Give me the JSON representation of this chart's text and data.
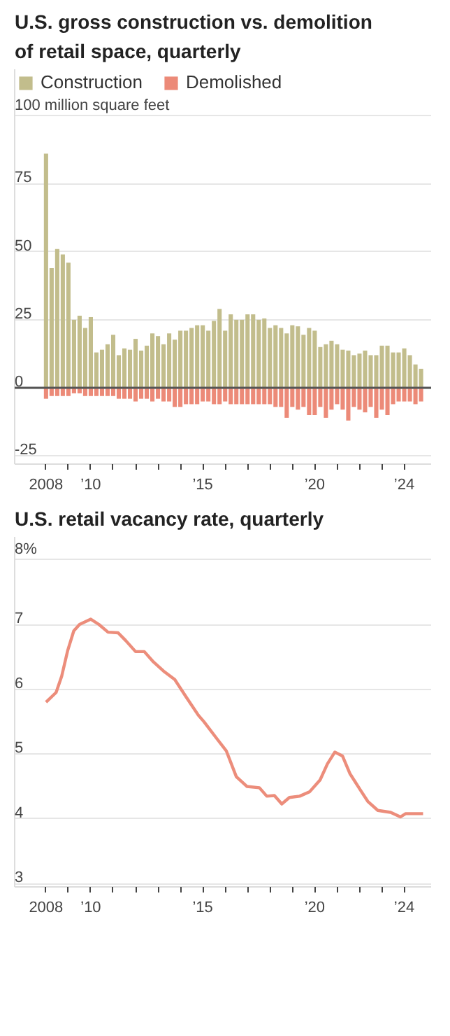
{
  "chart_data": [
    {
      "type": "bar",
      "title": "U.S. gross construction vs. demolition of retail space, quarterly",
      "x": [
        2008,
        2008.25,
        2008.5,
        2008.75,
        2009,
        2009.25,
        2009.5,
        2009.75,
        2010,
        2010.25,
        2010.5,
        2010.75,
        2011,
        2011.25,
        2011.5,
        2011.75,
        2012,
        2012.25,
        2012.5,
        2012.75,
        2013,
        2013.25,
        2013.5,
        2013.75,
        2014,
        2014.25,
        2014.5,
        2014.75,
        2015,
        2015.25,
        2015.5,
        2015.75,
        2016,
        2016.25,
        2016.5,
        2016.75,
        2017,
        2017.25,
        2017.5,
        2017.75,
        2018,
        2018.25,
        2018.5,
        2018.75,
        2019,
        2019.25,
        2019.5,
        2019.75,
        2020,
        2020.25,
        2020.5,
        2020.75,
        2021,
        2021.25,
        2021.5,
        2021.75,
        2022,
        2022.25,
        2022.5,
        2022.75,
        2023,
        2023.25,
        2023.5,
        2023.75,
        2024,
        2024.25,
        2024.5,
        2024.75
      ],
      "series": [
        {
          "name": "Construction",
          "color": "#c2bd8c",
          "values": [
            86,
            44,
            51,
            49,
            46,
            25,
            26.5,
            22,
            26,
            13,
            14,
            16,
            19.5,
            12,
            14.5,
            14,
            18,
            13.7,
            15.5,
            20,
            19,
            16,
            20,
            17.7,
            21,
            21,
            22,
            23,
            23,
            21,
            24.6,
            29,
            21,
            27,
            25,
            25,
            27,
            27,
            25,
            25.5,
            22,
            23,
            22,
            20,
            23,
            22.6,
            19.5,
            22,
            21,
            15,
            16,
            17.3,
            16,
            14,
            13.7,
            12,
            12.6,
            13.7,
            12,
            12,
            15.5,
            15.5,
            13,
            13,
            14.5,
            12,
            8.6,
            7
          ]
        },
        {
          "name": "Demolished",
          "color": "#ec8a78",
          "values": [
            -4,
            -3,
            -3,
            -3,
            -3,
            -2,
            -2,
            -3,
            -3,
            -3,
            -3,
            -3,
            -3,
            -4,
            -4,
            -4,
            -5,
            -4,
            -4,
            -5,
            -4,
            -5,
            -5,
            -7,
            -7,
            -6,
            -6,
            -6,
            -5,
            -5,
            -6,
            -6,
            -5,
            -6,
            -6,
            -6,
            -6,
            -6,
            -6,
            -6,
            -6,
            -7,
            -7,
            -11,
            -7,
            -8,
            -7,
            -10,
            -10,
            -7,
            -11,
            -8,
            -6,
            -8,
            -12,
            -7,
            -8,
            -9,
            -7,
            -11,
            -8,
            -10,
            -6,
            -5,
            -5,
            -5,
            -6,
            -5
          ]
        }
      ],
      "xlim": [
        2006.6,
        2025.2
      ],
      "xticks": [
        {
          "value": 2008,
          "label": "2008"
        },
        {
          "value": 2009,
          "label": null
        },
        {
          "value": 2010,
          "label": "’10"
        },
        {
          "value": 2011,
          "label": null
        },
        {
          "value": 2012,
          "label": null
        },
        {
          "value": 2013,
          "label": null
        },
        {
          "value": 2014,
          "label": null
        },
        {
          "value": 2015,
          "label": "’15"
        },
        {
          "value": 2016,
          "label": null
        },
        {
          "value": 2017,
          "label": null
        },
        {
          "value": 2018,
          "label": null
        },
        {
          "value": 2019,
          "label": null
        },
        {
          "value": 2020,
          "label": "’20"
        },
        {
          "value": 2021,
          "label": null
        },
        {
          "value": 2022,
          "label": null
        },
        {
          "value": 2023,
          "label": null
        },
        {
          "value": 2024,
          "label": "’24"
        }
      ],
      "ylim": [
        -28,
        117
      ],
      "yticks": [
        {
          "value": 100,
          "label": "100 million square feet"
        },
        75,
        50,
        25,
        0,
        -25
      ],
      "ref_lines": [
        {
          "axis": "y",
          "value": 0,
          "color": "#555555"
        }
      ],
      "grid": "y",
      "legend": "top",
      "stacked": true
    },
    {
      "type": "line",
      "title": "U.S. retail vacancy rate, quarterly",
      "series": [
        {
          "color": "#ec8d7b",
          "x": [
            2008.0,
            2008.45,
            2008.7,
            2008.97,
            2009.24,
            2009.5,
            2010.0,
            2010.36,
            2010.77,
            2011.22,
            2011.56,
            2012.0,
            2012.39,
            2012.8,
            2013.25,
            2013.75,
            2014.26,
            2014.8,
            2015.05,
            2015.6,
            2016.05,
            2016.5,
            2016.97,
            2017.53,
            2017.86,
            2018.2,
            2018.53,
            2018.87,
            2019.33,
            2019.78,
            2020.24,
            2020.57,
            2020.9,
            2021.24,
            2021.57,
            2022.03,
            2022.37,
            2022.82,
            2023.39,
            2023.83,
            2024.06,
            2024.84
          ],
          "values": [
            5.8,
            5.95,
            6.2,
            6.6,
            6.9,
            7.0,
            7.08,
            7.0,
            6.88,
            6.87,
            6.75,
            6.58,
            6.58,
            6.42,
            6.28,
            6.15,
            5.88,
            5.6,
            5.5,
            5.25,
            5.05,
            4.65,
            4.5,
            4.48,
            4.35,
            4.36,
            4.23,
            4.33,
            4.35,
            4.42,
            4.6,
            4.85,
            5.03,
            4.97,
            4.7,
            4.45,
            4.27,
            4.13,
            4.1,
            4.03,
            4.08,
            4.08
          ]
        }
      ],
      "xlim": [
        2006.6,
        2025.2
      ],
      "xticks": [
        {
          "value": 2008,
          "label": "2008"
        },
        {
          "value": 2009,
          "label": null
        },
        {
          "value": 2010,
          "label": "’10"
        },
        {
          "value": 2011,
          "label": null
        },
        {
          "value": 2012,
          "label": null
        },
        {
          "value": 2013,
          "label": null
        },
        {
          "value": 2014,
          "label": null
        },
        {
          "value": 2015,
          "label": "’15"
        },
        {
          "value": 2016,
          "label": null
        },
        {
          "value": 2017,
          "label": null
        },
        {
          "value": 2018,
          "label": null
        },
        {
          "value": 2019,
          "label": null
        },
        {
          "value": 2020,
          "label": "’20"
        },
        {
          "value": 2021,
          "label": null
        },
        {
          "value": 2022,
          "label": null
        },
        {
          "value": 2023,
          "label": null
        },
        {
          "value": 2024,
          "label": "’24"
        }
      ],
      "ylim": [
        2.95,
        8.35
      ],
      "yticks": [
        {
          "value": 8,
          "label": "8%"
        },
        7,
        6,
        5,
        4,
        3
      ],
      "grid": "y",
      "line_style": "solid",
      "marker": "none"
    }
  ]
}
